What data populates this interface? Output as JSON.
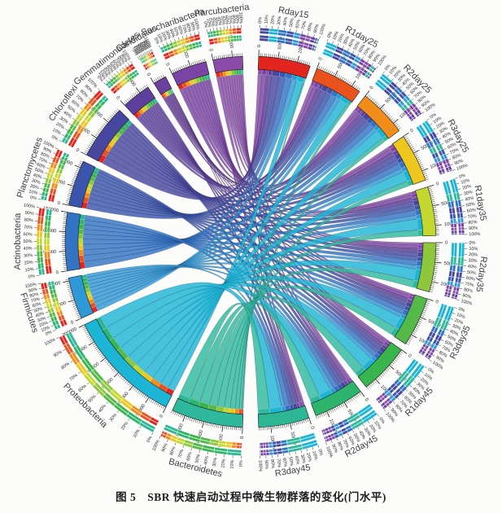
{
  "figure": {
    "caption": "图 5　SBR 快速启动过程中微生物群落的变化(门水平)"
  },
  "chart_data": {
    "type": "chord",
    "title": "SBR 快速启动过程中微生物群落的变化(门水平)",
    "figure_number": "图 5",
    "note": "Circos-style chord diagram; taxa (phyla) on left half, samples on right half; matrix values in sequence reads estimated from arc scales",
    "layout": {
      "taxa_side": "left",
      "samples_side": "right",
      "percent_ticks": [
        "0%",
        "10%",
        "20%",
        "30%",
        "40%",
        "50%",
        "60%",
        "70%",
        "80%",
        "90%",
        "100%"
      ],
      "scale_tick_interval": 50000,
      "scale_minor_tick": 5000
    },
    "samples": [
      {
        "name": "Rday15",
        "color": "#e3251f"
      },
      {
        "name": "R1day25",
        "color": "#e9521c"
      },
      {
        "name": "R2day25",
        "color": "#f08d1b"
      },
      {
        "name": "R3day25",
        "color": "#eec71e"
      },
      {
        "name": "R1day35",
        "color": "#c3d82e"
      },
      {
        "name": "R2day35",
        "color": "#8ec63c"
      },
      {
        "name": "R3day35",
        "color": "#54b948"
      },
      {
        "name": "R1day45",
        "color": "#3ab44d"
      },
      {
        "name": "R2day45",
        "color": "#2db56d"
      },
      {
        "name": "R3day45",
        "color": "#2db694"
      }
    ],
    "taxa": [
      {
        "name": "Parcubacteria",
        "color": "#8a4ca8",
        "values": [
          11000,
          9000,
          8000,
          8000,
          7000,
          7000,
          7000,
          7000,
          6000,
          6000
        ]
      },
      {
        "name": "Saccharibacteria",
        "color": "#7b43a4",
        "values": [
          13000,
          11000,
          10000,
          10000,
          9000,
          9000,
          8000,
          8000,
          7000,
          7000
        ]
      },
      {
        "name": "Candidatus",
        "color": "#6d3f9e",
        "values": [
          5000,
          4000,
          4000,
          3000,
          3000,
          4000,
          3000,
          3000,
          3000,
          2000
        ]
      },
      {
        "name": "Gemmatimonadetes",
        "color": "#5e3f9c",
        "values": [
          10000,
          8000,
          8000,
          8000,
          7000,
          7000,
          7000,
          7000,
          7000,
          6000
        ]
      },
      {
        "name": "Chloroflexi",
        "color": "#47479f",
        "values": [
          21000,
          17000,
          16000,
          15000,
          14000,
          13000,
          12000,
          12000,
          11000,
          11000
        ]
      },
      {
        "name": "Planctomycetes",
        "color": "#3a55ab",
        "values": [
          17000,
          14000,
          13000,
          12000,
          12000,
          11000,
          11000,
          10000,
          9000,
          9000
        ]
      },
      {
        "name": "Actinobacteria",
        "color": "#3274c3",
        "values": [
          19000,
          17000,
          16000,
          15000,
          15000,
          14000,
          14000,
          13000,
          13000,
          14000
        ]
      },
      {
        "name": "Firmicutes",
        "color": "#2f98d6",
        "values": [
          14000,
          12000,
          11000,
          11000,
          11000,
          10000,
          10000,
          10000,
          10000,
          9000
        ]
      },
      {
        "name": "Proteobacteria",
        "color": "#1db5d6",
        "values": [
          20000,
          24000,
          27000,
          29000,
          31000,
          32000,
          33000,
          34000,
          35000,
          35000
        ]
      },
      {
        "name": "Bacteroidetes",
        "color": "#2eb89c",
        "values": [
          4000,
          8000,
          11000,
          14000,
          17000,
          20000,
          23000,
          27000,
          29000,
          32000
        ]
      }
    ]
  }
}
